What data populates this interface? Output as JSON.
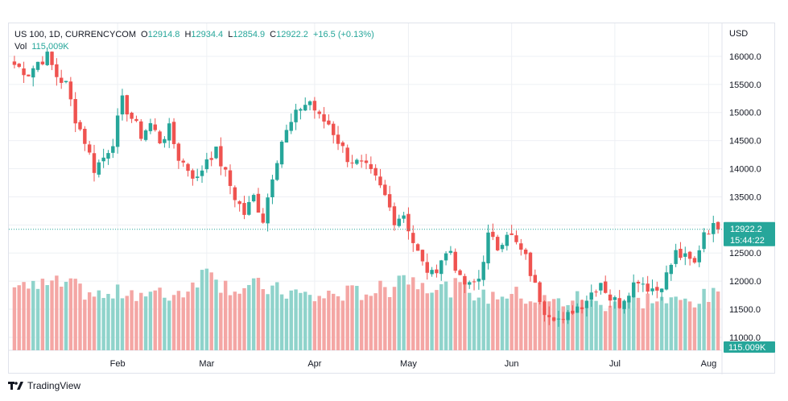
{
  "legend": {
    "symbol": "US 100, 1D, CURRENCYCOM",
    "open_label": "O",
    "open": "12914.8",
    "high_label": "H",
    "high": "12934.4",
    "low_label": "L",
    "low": "12854.9",
    "close_label": "C",
    "close": "12922.2",
    "change": "+16.5 (+0.13%)",
    "vol_label": "Vol",
    "vol": "115.009K"
  },
  "footer": {
    "brand": "TradingView"
  },
  "colors": {
    "up": "#26a69a",
    "down": "#ef5350",
    "vol_up": "#8fd3cb",
    "vol_down": "#f4a6a4",
    "grid": "#eef0f4",
    "price_tag": "#26a69a"
  },
  "chart_data": {
    "type": "candlestick",
    "currency_label": "USD",
    "y_ticks": [
      16000,
      15500,
      15000,
      14500,
      14000,
      13500,
      13000,
      12500,
      12000,
      11500,
      11000
    ],
    "y_tick_labels": [
      "16000.0",
      "15500.0",
      "15000.0",
      "14500.0",
      "14000.0",
      "13500.0",
      "13000.0",
      "12500.0",
      "12000.0",
      "11500.0",
      "11000.0"
    ],
    "ylim": [
      10770,
      16300
    ],
    "x_ticks": [
      {
        "label": "Feb",
        "index": 22
      },
      {
        "label": "Mar",
        "index": 41
      },
      {
        "label": "Apr",
        "index": 64
      },
      {
        "label": "May",
        "index": 84
      },
      {
        "label": "Jun",
        "index": 106
      },
      {
        "label": "Jul",
        "index": 128
      },
      {
        "label": "Aug",
        "index": 148
      }
    ],
    "last_price": "12922.2",
    "countdown": "15:44:22",
    "current_volume": "115.009K",
    "close_path": [
      [
        0,
        15850
      ],
      [
        3,
        15700
      ],
      [
        5,
        15900
      ],
      [
        7,
        16000
      ],
      [
        9,
        15650
      ],
      [
        11,
        15500
      ],
      [
        13,
        14900
      ],
      [
        15,
        14500
      ],
      [
        17,
        14000
      ],
      [
        19,
        14200
      ],
      [
        21,
        14500
      ],
      [
        23,
        15200
      ],
      [
        25,
        14900
      ],
      [
        27,
        14600
      ],
      [
        29,
        14800
      ],
      [
        31,
        14500
      ],
      [
        33,
        14700
      ],
      [
        35,
        14200
      ],
      [
        37,
        14000
      ],
      [
        39,
        13800
      ],
      [
        41,
        14200
      ],
      [
        43,
        14300
      ],
      [
        45,
        13900
      ],
      [
        47,
        13500
      ],
      [
        49,
        13200
      ],
      [
        51,
        13500
      ],
      [
        53,
        13100
      ],
      [
        55,
        13900
      ],
      [
        57,
        14500
      ],
      [
        59,
        14800
      ],
      [
        61,
        15100
      ],
      [
        63,
        15200
      ],
      [
        65,
        14900
      ],
      [
        67,
        14800
      ],
      [
        69,
        14500
      ],
      [
        71,
        14200
      ],
      [
        73,
        14100
      ],
      [
        75,
        14000
      ],
      [
        77,
        13800
      ],
      [
        79,
        13500
      ],
      [
        81,
        13100
      ],
      [
        83,
        13200
      ],
      [
        85,
        12700
      ],
      [
        87,
        12300
      ],
      [
        89,
        12100
      ],
      [
        91,
        12400
      ],
      [
        93,
        12550
      ],
      [
        95,
        12000
      ],
      [
        97,
        11900
      ],
      [
        99,
        12050
      ],
      [
        101,
        12800
      ],
      [
        103,
        12600
      ],
      [
        105,
        12900
      ],
      [
        107,
        12650
      ],
      [
        109,
        12400
      ],
      [
        111,
        11900
      ],
      [
        113,
        11500
      ],
      [
        115,
        11400
      ],
      [
        117,
        11250
      ],
      [
        119,
        11500
      ],
      [
        121,
        11600
      ],
      [
        123,
        11800
      ],
      [
        125,
        12000
      ],
      [
        127,
        11700
      ],
      [
        129,
        11600
      ],
      [
        131,
        11850
      ],
      [
        133,
        12050
      ],
      [
        135,
        11900
      ],
      [
        137,
        11850
      ],
      [
        139,
        12100
      ],
      [
        141,
        12500
      ],
      [
        143,
        12400
      ],
      [
        145,
        12300
      ],
      [
        147,
        12900
      ],
      [
        149,
        12950
      ],
      [
        150,
        12922
      ]
    ],
    "volume_k_path": [
      [
        0,
        150
      ],
      [
        4,
        130
      ],
      [
        8,
        140
      ],
      [
        12,
        135
      ],
      [
        16,
        120
      ],
      [
        20,
        110
      ],
      [
        24,
        128
      ],
      [
        28,
        118
      ],
      [
        32,
        115
      ],
      [
        36,
        125
      ],
      [
        40,
        160
      ],
      [
        42,
        180
      ],
      [
        44,
        140
      ],
      [
        48,
        130
      ],
      [
        52,
        135
      ],
      [
        56,
        125
      ],
      [
        60,
        120
      ],
      [
        64,
        110
      ],
      [
        68,
        118
      ],
      [
        72,
        120
      ],
      [
        76,
        125
      ],
      [
        80,
        130
      ],
      [
        82,
        165
      ],
      [
        84,
        150
      ],
      [
        88,
        140
      ],
      [
        92,
        130
      ],
      [
        96,
        135
      ],
      [
        100,
        110
      ],
      [
        104,
        120
      ],
      [
        108,
        115
      ],
      [
        112,
        105
      ],
      [
        116,
        100
      ],
      [
        120,
        110
      ],
      [
        124,
        95
      ],
      [
        128,
        105
      ],
      [
        132,
        100
      ],
      [
        136,
        110
      ],
      [
        140,
        100
      ],
      [
        144,
        105
      ],
      [
        148,
        112
      ],
      [
        150,
        115
      ]
    ],
    "volume_max_k": 180
  }
}
